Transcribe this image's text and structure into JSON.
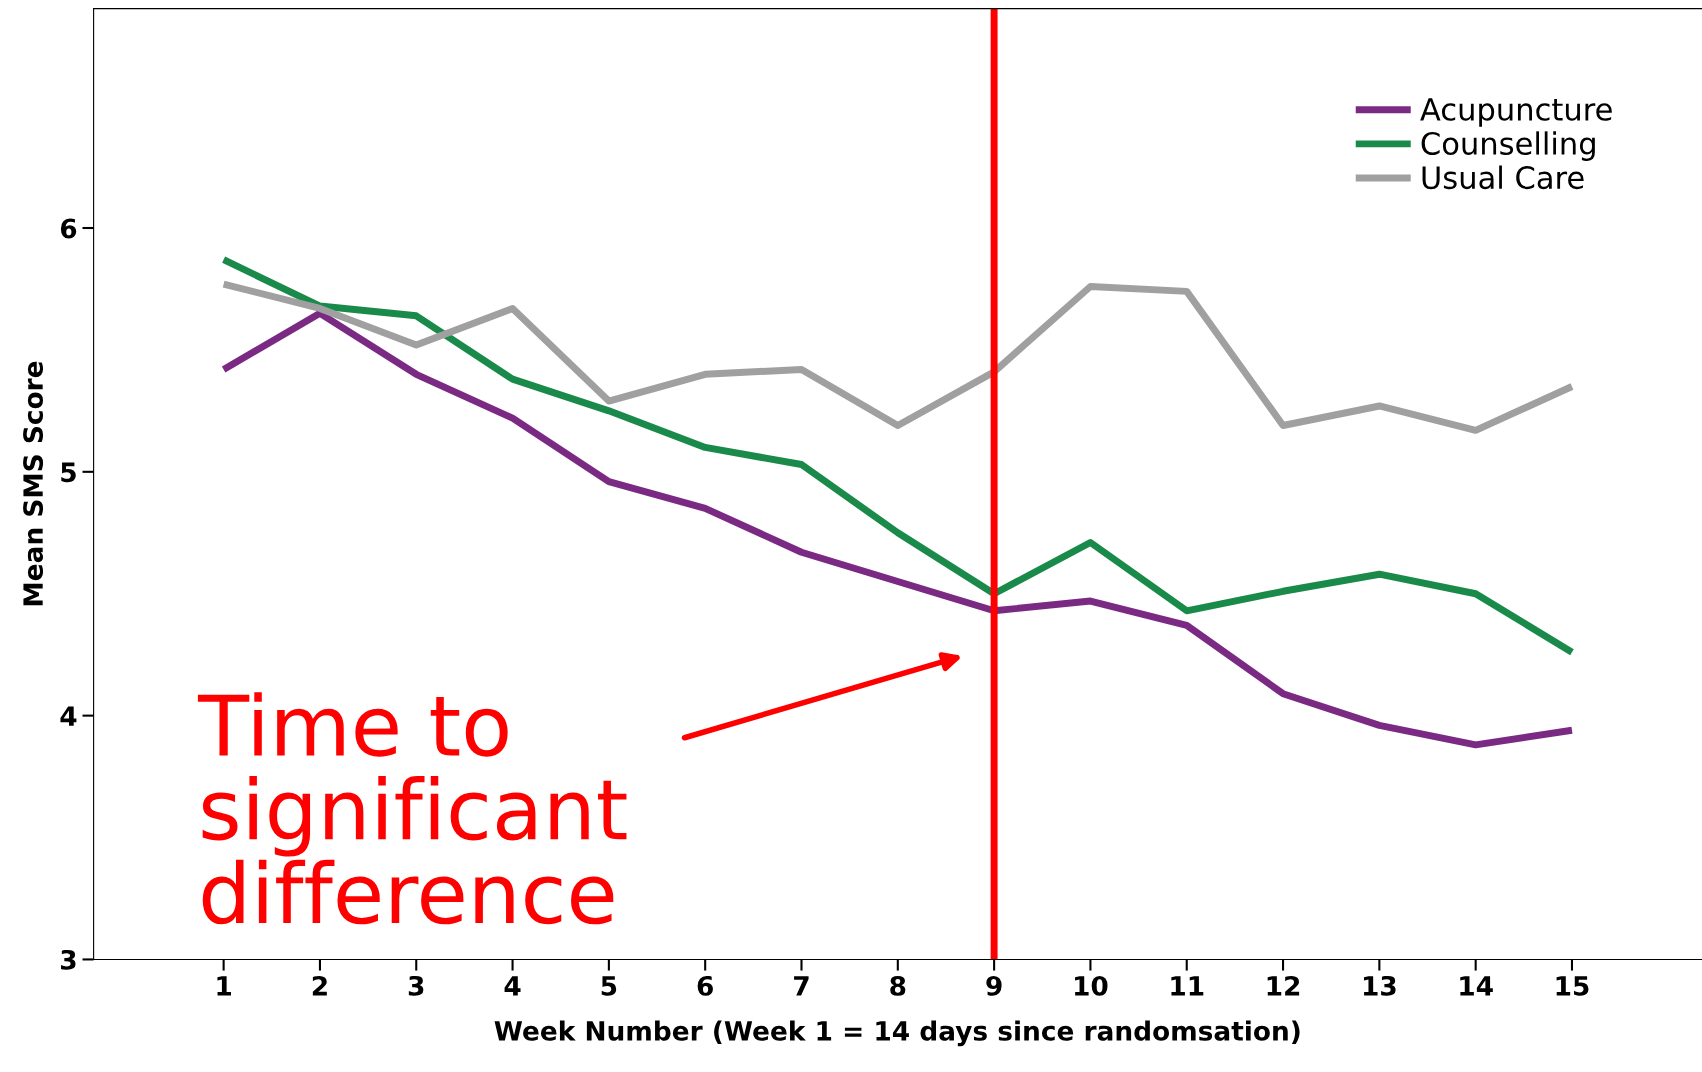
{
  "chart_data": {
    "type": "line",
    "xlabel": "Week Number (Week 1 = 14 days since randomsation)",
    "ylabel": "Mean SMS Score",
    "x": [
      1,
      2,
      3,
      4,
      5,
      6,
      7,
      8,
      9,
      10,
      11,
      12,
      13,
      14,
      15
    ],
    "series": [
      {
        "name": "Acupuncture",
        "color": "#7b2a84",
        "values": [
          5.42,
          5.65,
          5.4,
          5.22,
          4.96,
          4.85,
          4.67,
          4.55,
          4.43,
          4.47,
          4.37,
          4.09,
          3.96,
          3.88,
          3.94
        ]
      },
      {
        "name": "Counselling",
        "color": "#1a8a4a",
        "values": [
          5.87,
          5.68,
          5.64,
          5.38,
          5.25,
          5.1,
          5.03,
          4.75,
          4.5,
          4.71,
          4.43,
          4.51,
          4.58,
          4.5,
          4.26
        ]
      },
      {
        "name": "Usual Care",
        "color": "#a0a0a0",
        "values": [
          5.77,
          5.67,
          5.52,
          5.67,
          5.29,
          5.4,
          5.42,
          5.19,
          5.41,
          5.76,
          5.74,
          5.19,
          5.27,
          5.17,
          5.35
        ]
      }
    ],
    "xlim": [
      -0.35,
      16.35
    ],
    "ylim": [
      3,
      6.9
    ],
    "xticks": [
      1,
      2,
      3,
      4,
      5,
      6,
      7,
      8,
      9,
      10,
      11,
      12,
      13,
      14,
      15
    ],
    "yticks": [
      3,
      4,
      5,
      6
    ],
    "ref_lines": [
      {
        "axis": "x",
        "value": 9,
        "color": "#ff0000"
      }
    ],
    "annotations": [
      "Time to\nsignificant\ndifference"
    ],
    "legend": "top right",
    "grid": false,
    "marker": "none",
    "line_style": "solid"
  }
}
